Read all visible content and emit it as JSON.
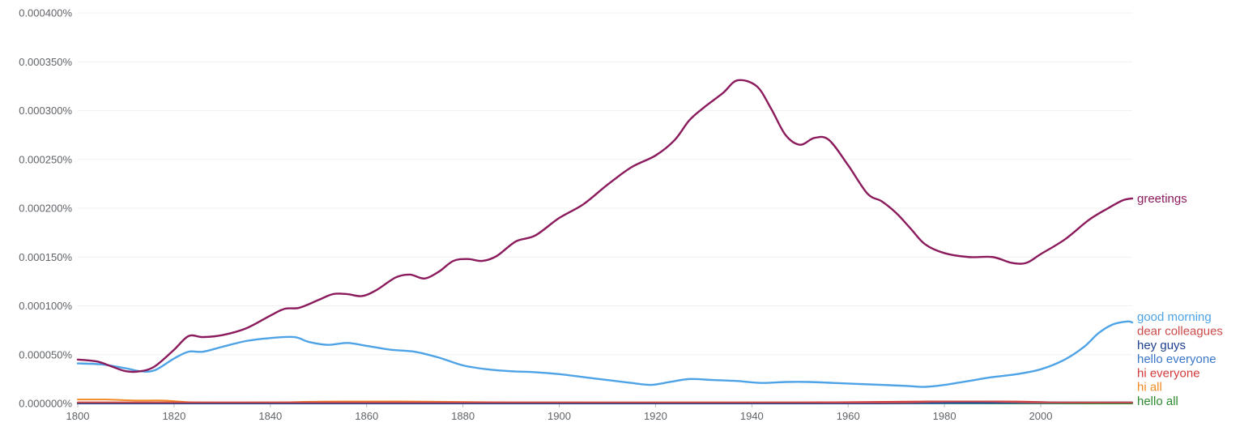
{
  "chart_data": {
    "type": "line",
    "title": "",
    "xlabel": "",
    "ylabel": "",
    "xlim": [
      1800,
      2019
    ],
    "ylim": [
      0,
      0.0004
    ],
    "grid": true,
    "x_ticks": [
      1800,
      1820,
      1840,
      1860,
      1880,
      1900,
      1920,
      1940,
      1960,
      1980,
      2000
    ],
    "y_ticks": [
      0,
      5e-05,
      0.0001,
      0.00015,
      0.0002,
      0.00025,
      0.0003,
      0.00035,
      0.0004
    ],
    "x_tick_labels": [
      "1800",
      "1820",
      "1840",
      "1860",
      "1880",
      "1900",
      "1920",
      "1940",
      "1960",
      "1980",
      "2000"
    ],
    "y_tick_labels": [
      "0.000000%",
      "0.000050%",
      "0.000100%",
      "0.000150%",
      "0.000200%",
      "0.000250%",
      "0.000300%",
      "0.000350%",
      "0.000400%"
    ],
    "legend_position": "right, at line ends",
    "series": [
      {
        "name": "greetings",
        "color": "#8b1a5c",
        "points": [
          [
            1800,
            4.5e-05
          ],
          [
            1804,
            4.3e-05
          ],
          [
            1807,
            3.8e-05
          ],
          [
            1810,
            3.3e-05
          ],
          [
            1813,
            3.3e-05
          ],
          [
            1816,
            3.8e-05
          ],
          [
            1820,
            5.5e-05
          ],
          [
            1823,
            6.9e-05
          ],
          [
            1826,
            6.8e-05
          ],
          [
            1830,
            7e-05
          ],
          [
            1835,
            7.7e-05
          ],
          [
            1840,
            9e-05
          ],
          [
            1843,
            9.7e-05
          ],
          [
            1846,
            9.8e-05
          ],
          [
            1850,
            0.000106
          ],
          [
            1853,
            0.000112
          ],
          [
            1856,
            0.000112
          ],
          [
            1859,
            0.00011
          ],
          [
            1862,
            0.000116
          ],
          [
            1866,
            0.000129
          ],
          [
            1869,
            0.000132
          ],
          [
            1872,
            0.000128
          ],
          [
            1875,
            0.000135
          ],
          [
            1878,
            0.000146
          ],
          [
            1881,
            0.000148
          ],
          [
            1884,
            0.000146
          ],
          [
            1887,
            0.000151
          ],
          [
            1891,
            0.000166
          ],
          [
            1895,
            0.000172
          ],
          [
            1900,
            0.00019
          ],
          [
            1905,
            0.000204
          ],
          [
            1910,
            0.000224
          ],
          [
            1915,
            0.000242
          ],
          [
            1920,
            0.000254
          ],
          [
            1924,
            0.00027
          ],
          [
            1927,
            0.00029
          ],
          [
            1930,
            0.000303
          ],
          [
            1934,
            0.000318
          ],
          [
            1937,
            0.000331
          ],
          [
            1941,
            0.000325
          ],
          [
            1944,
            0.000302
          ],
          [
            1947,
            0.000275
          ],
          [
            1950,
            0.000265
          ],
          [
            1953,
            0.000272
          ],
          [
            1956,
            0.00027
          ],
          [
            1960,
            0.000244
          ],
          [
            1964,
            0.000215
          ],
          [
            1967,
            0.000207
          ],
          [
            1970,
            0.000195
          ],
          [
            1973,
            0.000179
          ],
          [
            1976,
            0.000163
          ],
          [
            1980,
            0.000154
          ],
          [
            1985,
            0.00015
          ],
          [
            1990,
            0.00015
          ],
          [
            1994,
            0.000144
          ],
          [
            1997,
            0.000144
          ],
          [
            2000,
            0.000153
          ],
          [
            2005,
            0.000168
          ],
          [
            2010,
            0.000188
          ],
          [
            2014,
            0.0002
          ],
          [
            2017,
            0.000208
          ],
          [
            2019,
            0.00021
          ]
        ]
      },
      {
        "name": "good morning",
        "color": "#4ea3e6",
        "points": [
          [
            1800,
            4.1e-05
          ],
          [
            1805,
            4e-05
          ],
          [
            1810,
            3.6e-05
          ],
          [
            1813,
            3.3e-05
          ],
          [
            1816,
            3.4e-05
          ],
          [
            1820,
            4.6e-05
          ],
          [
            1823,
            5.3e-05
          ],
          [
            1826,
            5.3e-05
          ],
          [
            1830,
            5.8e-05
          ],
          [
            1835,
            6.4e-05
          ],
          [
            1840,
            6.7e-05
          ],
          [
            1845,
            6.8e-05
          ],
          [
            1848,
            6.3e-05
          ],
          [
            1852,
            6e-05
          ],
          [
            1856,
            6.2e-05
          ],
          [
            1860,
            5.9e-05
          ],
          [
            1865,
            5.5e-05
          ],
          [
            1870,
            5.3e-05
          ],
          [
            1875,
            4.7e-05
          ],
          [
            1880,
            3.9e-05
          ],
          [
            1885,
            3.5e-05
          ],
          [
            1890,
            3.3e-05
          ],
          [
            1895,
            3.2e-05
          ],
          [
            1900,
            3e-05
          ],
          [
            1905,
            2.7e-05
          ],
          [
            1910,
            2.4e-05
          ],
          [
            1915,
            2.1e-05
          ],
          [
            1919,
            1.9e-05
          ],
          [
            1923,
            2.2e-05
          ],
          [
            1927,
            2.5e-05
          ],
          [
            1932,
            2.4e-05
          ],
          [
            1937,
            2.3e-05
          ],
          [
            1942,
            2.1e-05
          ],
          [
            1947,
            2.2e-05
          ],
          [
            1952,
            2.2e-05
          ],
          [
            1957,
            2.1e-05
          ],
          [
            1962,
            2e-05
          ],
          [
            1967,
            1.9e-05
          ],
          [
            1972,
            1.8e-05
          ],
          [
            1976,
            1.7e-05
          ],
          [
            1980,
            1.9e-05
          ],
          [
            1985,
            2.3e-05
          ],
          [
            1990,
            2.7e-05
          ],
          [
            1995,
            3e-05
          ],
          [
            2000,
            3.5e-05
          ],
          [
            2005,
            4.5e-05
          ],
          [
            2009,
            5.8e-05
          ],
          [
            2012,
            7.2e-05
          ],
          [
            2015,
            8.1e-05
          ],
          [
            2018,
            8.4e-05
          ],
          [
            2019,
            8.3e-05
          ]
        ]
      },
      {
        "name": "dear colleagues",
        "color": "#cc4a4a",
        "points": [
          [
            1800,
            1e-06
          ],
          [
            1850,
            1e-06
          ],
          [
            1900,
            1e-06
          ],
          [
            1950,
            1e-06
          ],
          [
            1970,
            1e-06
          ],
          [
            1980,
            2e-06
          ],
          [
            1990,
            2e-06
          ],
          [
            2000,
            1e-06
          ],
          [
            2019,
            1e-06
          ]
        ]
      },
      {
        "name": "hey guys",
        "color": "#1c3f8f",
        "points": [
          [
            1800,
            0.0
          ],
          [
            1900,
            0.0
          ],
          [
            1960,
            0.0
          ],
          [
            1980,
            1e-06
          ],
          [
            2000,
            1e-06
          ],
          [
            2019,
            1e-06
          ]
        ]
      },
      {
        "name": "hello everyone",
        "color": "#3b78c7",
        "points": [
          [
            1800,
            0.0
          ],
          [
            1900,
            0.0
          ],
          [
            1960,
            0.0
          ],
          [
            2000,
            5e-07
          ],
          [
            2019,
            1e-06
          ]
        ]
      },
      {
        "name": "hi everyone",
        "color": "#d23838",
        "points": [
          [
            1800,
            1e-06
          ],
          [
            1850,
            1e-06
          ],
          [
            1900,
            1e-06
          ],
          [
            1950,
            1e-06
          ],
          [
            1975,
            2e-06
          ],
          [
            1985,
            2e-06
          ],
          [
            1995,
            2e-06
          ],
          [
            2005,
            1e-06
          ],
          [
            2019,
            1e-06
          ]
        ]
      },
      {
        "name": "hi all",
        "color": "#f08a24",
        "points": [
          [
            1800,
            4e-06
          ],
          [
            1806,
            4e-06
          ],
          [
            1812,
            3e-06
          ],
          [
            1818,
            3e-06
          ],
          [
            1825,
            1e-06
          ],
          [
            1840,
            1e-06
          ],
          [
            1852,
            2e-06
          ],
          [
            1870,
            2e-06
          ],
          [
            1890,
            1e-06
          ],
          [
            1920,
            1e-06
          ],
          [
            1950,
            1e-06
          ],
          [
            1980,
            1e-06
          ],
          [
            2019,
            1e-06
          ]
        ]
      },
      {
        "name": "hello all",
        "color": "#2e8a2e",
        "points": [
          [
            1800,
            0.0
          ],
          [
            1900,
            0.0
          ],
          [
            1950,
            0.0
          ],
          [
            2000,
            0.0
          ],
          [
            2019,
            0.0
          ]
        ]
      }
    ]
  }
}
